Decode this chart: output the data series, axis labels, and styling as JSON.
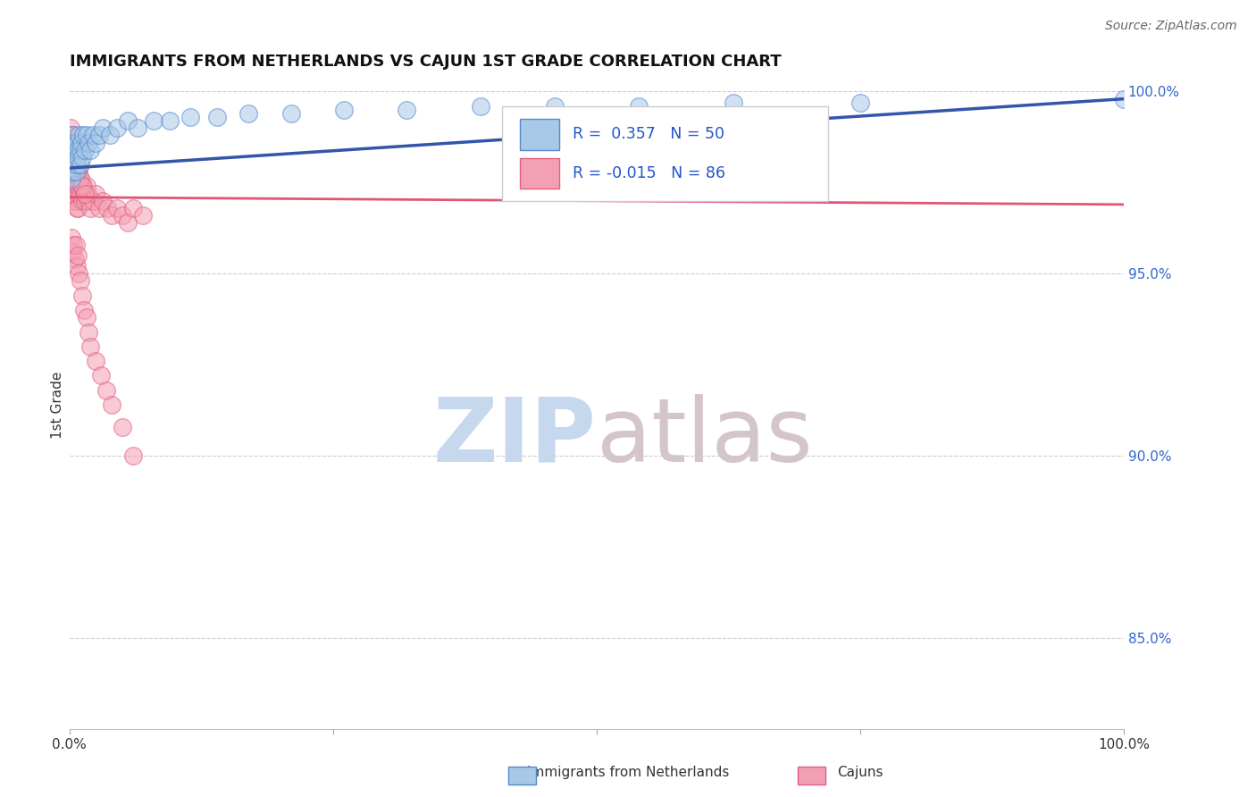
{
  "title": "IMMIGRANTS FROM NETHERLANDS VS CAJUN 1ST GRADE CORRELATION CHART",
  "source_text": "Source: ZipAtlas.com",
  "ylabel": "1st Grade",
  "xlim": [
    0.0,
    1.0
  ],
  "ylim": [
    0.825,
    1.003
  ],
  "yticks": [
    0.85,
    0.9,
    0.95,
    1.0
  ],
  "ytick_labels": [
    "85.0%",
    "90.0%",
    "95.0%",
    "100.0%"
  ],
  "blue_R": 0.357,
  "blue_N": 50,
  "pink_R": -0.015,
  "pink_N": 86,
  "blue_color": "#a8c8e8",
  "pink_color": "#f4a0b4",
  "blue_edge_color": "#5588cc",
  "pink_edge_color": "#e06080",
  "blue_line_color": "#3355aa",
  "pink_line_color": "#e05575",
  "legend_label_blue": "Immigrants from Netherlands",
  "legend_label_pink": "Cajuns",
  "watermark_zip_color": "#c5d8ee",
  "watermark_atlas_color": "#d4c5cc",
  "blue_scatter_x": [
    0.001,
    0.001,
    0.002,
    0.002,
    0.002,
    0.003,
    0.003,
    0.003,
    0.004,
    0.004,
    0.005,
    0.005,
    0.006,
    0.006,
    0.007,
    0.007,
    0.008,
    0.008,
    0.009,
    0.01,
    0.01,
    0.011,
    0.012,
    0.013,
    0.015,
    0.016,
    0.018,
    0.02,
    0.022,
    0.025,
    0.028,
    0.032,
    0.038,
    0.045,
    0.055,
    0.065,
    0.08,
    0.095,
    0.115,
    0.14,
    0.17,
    0.21,
    0.26,
    0.32,
    0.39,
    0.46,
    0.54,
    0.63,
    0.75,
    1.0
  ],
  "blue_scatter_y": [
    0.978,
    0.982,
    0.985,
    0.98,
    0.976,
    0.988,
    0.982,
    0.978,
    0.984,
    0.979,
    0.986,
    0.98,
    0.984,
    0.978,
    0.986,
    0.98,
    0.984,
    0.982,
    0.988,
    0.984,
    0.98,
    0.986,
    0.982,
    0.988,
    0.984,
    0.988,
    0.986,
    0.984,
    0.988,
    0.986,
    0.988,
    0.99,
    0.988,
    0.99,
    0.992,
    0.99,
    0.992,
    0.992,
    0.993,
    0.993,
    0.994,
    0.994,
    0.995,
    0.995,
    0.996,
    0.996,
    0.996,
    0.997,
    0.997,
    0.998
  ],
  "pink_scatter_x": [
    0.001,
    0.001,
    0.001,
    0.002,
    0.002,
    0.002,
    0.002,
    0.003,
    0.003,
    0.003,
    0.003,
    0.004,
    0.004,
    0.004,
    0.005,
    0.005,
    0.005,
    0.006,
    0.006,
    0.006,
    0.007,
    0.007,
    0.007,
    0.008,
    0.008,
    0.008,
    0.009,
    0.009,
    0.01,
    0.01,
    0.011,
    0.012,
    0.013,
    0.014,
    0.015,
    0.016,
    0.017,
    0.018,
    0.02,
    0.022,
    0.025,
    0.028,
    0.032,
    0.036,
    0.04,
    0.045,
    0.05,
    0.055,
    0.06,
    0.07,
    0.002,
    0.003,
    0.004,
    0.005,
    0.006,
    0.007,
    0.008,
    0.009,
    0.01,
    0.012,
    0.014,
    0.016,
    0.018,
    0.02,
    0.025,
    0.03,
    0.035,
    0.04,
    0.05,
    0.06,
    0.001,
    0.001,
    0.002,
    0.002,
    0.003,
    0.003,
    0.004,
    0.004,
    0.005,
    0.005,
    0.006,
    0.007,
    0.008,
    0.01,
    0.012,
    0.015
  ],
  "pink_scatter_y": [
    0.978,
    0.982,
    0.975,
    0.98,
    0.984,
    0.976,
    0.972,
    0.98,
    0.976,
    0.984,
    0.97,
    0.978,
    0.974,
    0.982,
    0.976,
    0.972,
    0.98,
    0.978,
    0.974,
    0.97,
    0.978,
    0.974,
    0.968,
    0.976,
    0.972,
    0.968,
    0.978,
    0.974,
    0.976,
    0.972,
    0.974,
    0.97,
    0.974,
    0.972,
    0.97,
    0.974,
    0.972,
    0.97,
    0.968,
    0.97,
    0.972,
    0.968,
    0.97,
    0.968,
    0.966,
    0.968,
    0.966,
    0.964,
    0.968,
    0.966,
    0.96,
    0.956,
    0.958,
    0.954,
    0.958,
    0.952,
    0.955,
    0.95,
    0.948,
    0.944,
    0.94,
    0.938,
    0.934,
    0.93,
    0.926,
    0.922,
    0.918,
    0.914,
    0.908,
    0.9,
    0.99,
    0.988,
    0.986,
    0.984,
    0.988,
    0.986,
    0.984,
    0.982,
    0.986,
    0.984,
    0.982,
    0.98,
    0.978,
    0.976,
    0.974,
    0.972
  ],
  "blue_trend_x": [
    0.0,
    1.0
  ],
  "blue_trend_y": [
    0.979,
    0.998
  ],
  "pink_trend_x": [
    0.0,
    1.0
  ],
  "pink_trend_y": [
    0.971,
    0.969
  ]
}
